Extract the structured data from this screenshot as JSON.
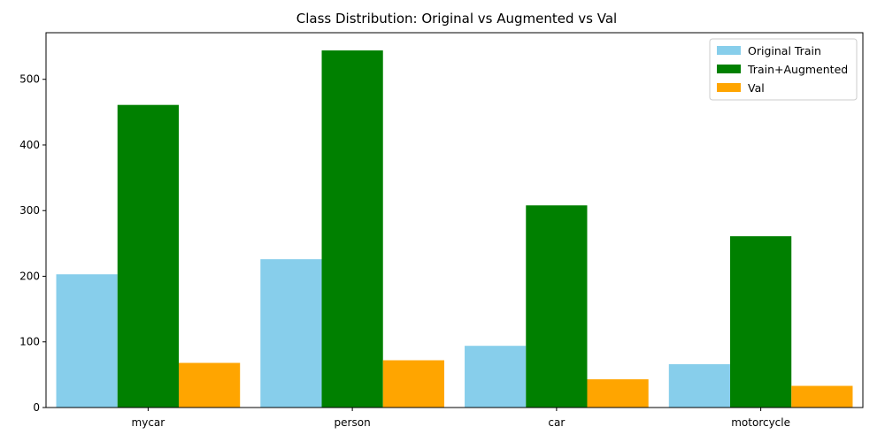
{
  "chart_data": {
    "type": "bar",
    "title": "Class Distribution: Original vs Augmented vs Val",
    "xlabel": "",
    "ylabel": "",
    "categories": [
      "mycar",
      "person",
      "car",
      "motorcycle"
    ],
    "series": [
      {
        "name": "Original Train",
        "color": "#87ceeb",
        "values": [
          203,
          226,
          94,
          66
        ]
      },
      {
        "name": "Train+Augmented",
        "color": "#008000",
        "values": [
          461,
          544,
          308,
          261
        ]
      },
      {
        "name": "Val",
        "color": "#ffa500",
        "values": [
          68,
          72,
          43,
          33
        ]
      }
    ],
    "ylim": [
      0,
      571
    ],
    "yticks": [
      0,
      100,
      200,
      300,
      400,
      500
    ],
    "grid": false,
    "legend_position": "top-right"
  }
}
